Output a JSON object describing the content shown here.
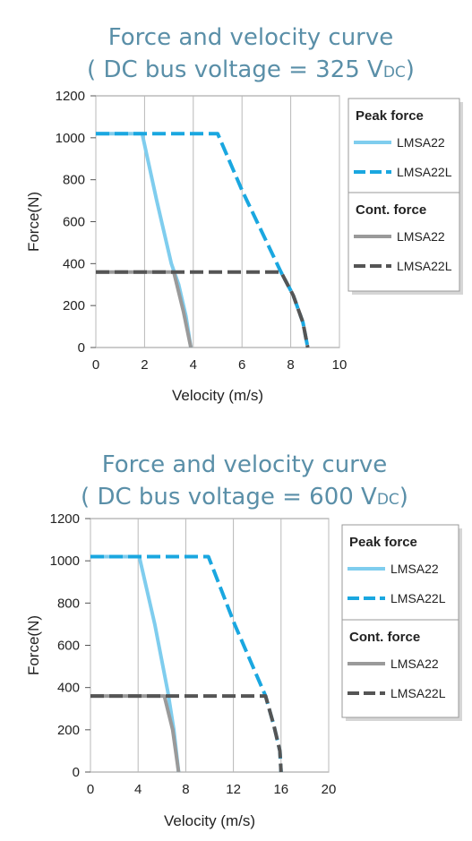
{
  "chart_data": [
    {
      "type": "line",
      "title": "Force and velocity curve",
      "subtitle": {
        "prefix": "( DC bus voltage = 325 V",
        "subscript": "DC",
        "suffix": ")"
      },
      "xlabel": "Velocity (m/s)",
      "ylabel": "Force(N)",
      "xlim": [
        0,
        10
      ],
      "ylim": [
        0,
        1200
      ],
      "xticks": [
        0,
        2,
        4,
        6,
        8,
        10
      ],
      "yticks": [
        0,
        200,
        400,
        600,
        800,
        1000,
        1200
      ],
      "grid": true,
      "legend_position": "right",
      "legend_groups": [
        {
          "heading": "Peak force",
          "entries": [
            {
              "name": "LMSA22",
              "series": 0
            },
            {
              "name": "LMSA22L",
              "series": 1
            }
          ]
        },
        {
          "heading": "Cont. force",
          "entries": [
            {
              "name": "LMSA22",
              "series": 2
            },
            {
              "name": "LMSA22L",
              "series": 3
            }
          ]
        }
      ],
      "series": [
        {
          "name": "LMSA22",
          "group": "Peak force",
          "color": "#7fcdee",
          "style": "solid",
          "x": [
            0,
            1.9,
            2.5,
            3.1,
            3.4,
            3.7,
            3.9
          ],
          "y": [
            1020,
            1020,
            700,
            400,
            300,
            150,
            0
          ]
        },
        {
          "name": "LMSA22L",
          "group": "Peak force",
          "color": "#1aa7e0",
          "style": "dashed",
          "x": [
            0,
            5.0,
            6.0,
            7.6,
            8.1,
            8.5,
            8.7
          ],
          "y": [
            1020,
            1020,
            750,
            360,
            250,
            120,
            0
          ]
        },
        {
          "name": "LMSA22",
          "group": "Cont. force",
          "color": "#9a9a9a",
          "style": "solid",
          "x": [
            0,
            3.2,
            3.6,
            3.9
          ],
          "y": [
            360,
            360,
            170,
            0
          ]
        },
        {
          "name": "LMSA22L",
          "group": "Cont. force",
          "color": "#555555",
          "style": "dashed",
          "x": [
            0,
            7.6,
            8.1,
            8.5,
            8.7
          ],
          "y": [
            360,
            360,
            250,
            120,
            0
          ]
        }
      ]
    },
    {
      "type": "line",
      "title": "Force and velocity curve",
      "subtitle": {
        "prefix": "( DC bus voltage = 600 V",
        "subscript": "DC",
        "suffix": ")"
      },
      "xlabel": "Velocity (m/s)",
      "ylabel": "Force(N)",
      "xlim": [
        0,
        20
      ],
      "ylim": [
        0,
        1200
      ],
      "xticks": [
        0,
        4,
        8,
        12,
        16,
        20
      ],
      "yticks": [
        0,
        200,
        400,
        600,
        800,
        1000,
        1200
      ],
      "grid": true,
      "legend_position": "right",
      "legend_groups": [
        {
          "heading": "Peak force",
          "entries": [
            {
              "name": "LMSA22",
              "series": 0
            },
            {
              "name": "LMSA22L",
              "series": 1
            }
          ]
        },
        {
          "heading": "Cont. force",
          "entries": [
            {
              "name": "LMSA22",
              "series": 2
            },
            {
              "name": "LMSA22L",
              "series": 3
            }
          ]
        }
      ],
      "series": [
        {
          "name": "LMSA22",
          "group": "Peak force",
          "color": "#7fcdee",
          "style": "solid",
          "x": [
            0,
            4.1,
            5.4,
            6.5,
            7.0,
            7.4
          ],
          "y": [
            1020,
            1020,
            700,
            380,
            200,
            0
          ]
        },
        {
          "name": "LMSA22L",
          "group": "Peak force",
          "color": "#1aa7e0",
          "style": "dashed",
          "x": [
            0,
            9.9,
            12.1,
            14.7,
            15.4,
            15.9,
            16.0
          ],
          "y": [
            1020,
            1020,
            700,
            360,
            220,
            100,
            0
          ]
        },
        {
          "name": "LMSA22",
          "group": "Cont. force",
          "color": "#9a9a9a",
          "style": "solid",
          "x": [
            0,
            6.2,
            6.9,
            7.4
          ],
          "y": [
            360,
            360,
            200,
            0
          ]
        },
        {
          "name": "LMSA22L",
          "group": "Cont. force",
          "color": "#555555",
          "style": "dashed",
          "x": [
            0,
            14.7,
            15.4,
            15.9,
            16.0
          ],
          "y": [
            360,
            360,
            220,
            100,
            0
          ]
        }
      ]
    }
  ]
}
